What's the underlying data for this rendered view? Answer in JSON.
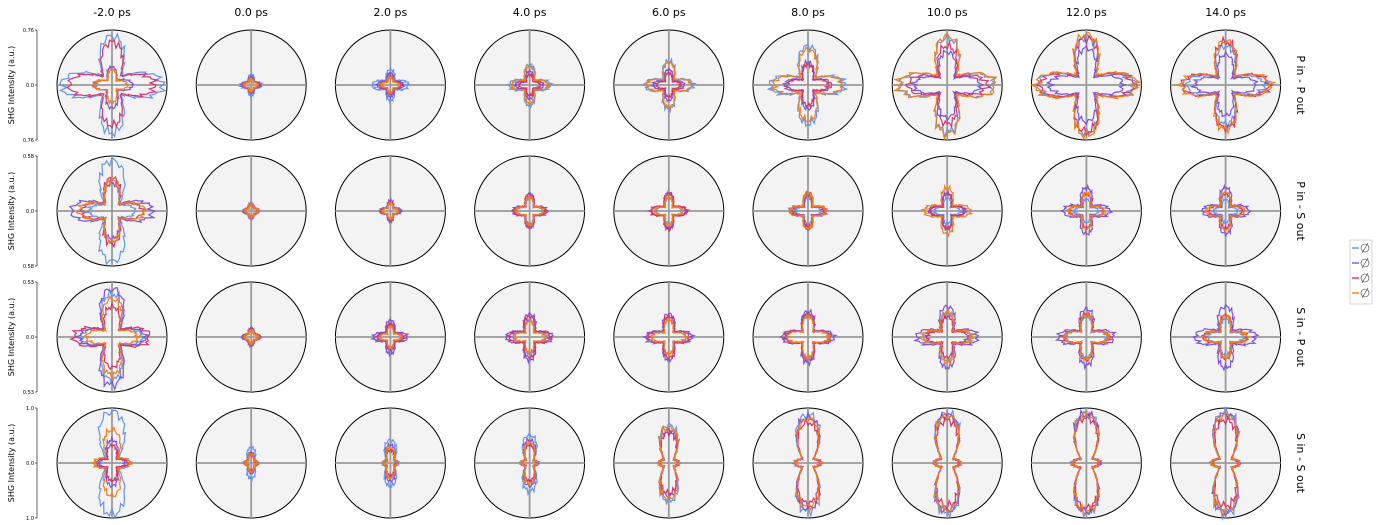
{
  "chart_data": {
    "type": "polar-grid",
    "columns": [
      "-2.0 ps",
      "0.0 ps",
      "2.0 ps",
      "4.0 ps",
      "6.0 ps",
      "8.0 ps",
      "10.0 ps",
      "12.0 ps",
      "14.0 ps"
    ],
    "rows": [
      {
        "label": "P in - P out",
        "ylabel": "SHG Intensity (a.u.)",
        "ticks": [
          "0.76",
          "0.0",
          "0.76"
        ],
        "rmax": 0.76
      },
      {
        "label": "P in - S out",
        "ylabel": "SHG Intensity (a.u.)",
        "ticks": [
          "0.58",
          "0.0",
          "0.58"
        ],
        "rmax": 0.58
      },
      {
        "label": "S in - P out",
        "ylabel": "SHG Intensity (a.u.)",
        "ticks": [
          "0.53",
          "0.0",
          "0.53"
        ],
        "rmax": 0.53
      },
      {
        "label": "S in - S out",
        "ylabel": "SHG Intensity (a.u.)",
        "ticks": [
          "1.0",
          "0.0",
          "1.0"
        ],
        "rmax": 1.0
      }
    ],
    "series_colors": [
      "#6495ed",
      "#7b52e0",
      "#d6336c",
      "#f07f18"
    ],
    "legend_position": "right",
    "legend_icons": [
      "polarizer-icon-1",
      "polarizer-icon-2",
      "polarizer-icon-3",
      "polarizer-icon-4"
    ],
    "panels": [
      [
        [
          [
            0.92,
            0.95,
            0.9,
            0.95
          ],
          [
            0.3,
            0.35,
            0.4,
            0.3
          ],
          [
            0.8,
            0.8,
            0.75,
            0.8
          ],
          [
            0.25,
            0.25,
            0.3,
            0.3
          ]
        ],
        [
          [
            0.15,
            0.15,
            0.15,
            0.15
          ],
          [
            0.1,
            0.12,
            0.1,
            0.12
          ],
          [
            0.08,
            0.1,
            0.08,
            0.1
          ],
          [
            0.07,
            0.08,
            0.07,
            0.08
          ]
        ],
        [
          [
            0.25,
            0.3,
            0.25,
            0.3
          ],
          [
            0.18,
            0.2,
            0.18,
            0.2
          ],
          [
            0.12,
            0.15,
            0.12,
            0.15
          ],
          [
            0.1,
            0.12,
            0.1,
            0.12
          ]
        ],
        [
          [
            0.35,
            0.35,
            0.35,
            0.35
          ],
          [
            0.22,
            0.22,
            0.22,
            0.22
          ],
          [
            0.15,
            0.15,
            0.15,
            0.15
          ],
          [
            0.3,
            0.3,
            0.3,
            0.3
          ]
        ],
        [
          [
            0.42,
            0.42,
            0.42,
            0.42
          ],
          [
            0.25,
            0.25,
            0.25,
            0.25
          ],
          [
            0.18,
            0.18,
            0.18,
            0.18
          ],
          [
            0.38,
            0.38,
            0.38,
            0.38
          ]
        ],
        [
          [
            0.72,
            0.68,
            0.72,
            0.7
          ],
          [
            0.4,
            0.4,
            0.42,
            0.4
          ],
          [
            0.35,
            0.35,
            0.35,
            0.35
          ],
          [
            0.65,
            0.62,
            0.65,
            0.63
          ]
        ],
        [
          [
            0.88,
            0.88,
            0.88,
            0.88
          ],
          [
            0.6,
            0.6,
            0.6,
            0.6
          ],
          [
            0.72,
            0.72,
            0.72,
            0.72
          ],
          [
            0.92,
            0.92,
            0.92,
            0.92
          ]
        ],
        [
          [
            0.9,
            0.9,
            0.9,
            0.9
          ],
          [
            0.68,
            0.68,
            0.68,
            0.68
          ],
          [
            0.88,
            0.88,
            0.88,
            0.88
          ],
          [
            0.95,
            0.95,
            0.95,
            0.95
          ]
        ],
        [
          [
            0.72,
            0.72,
            0.72,
            0.72
          ],
          [
            0.55,
            0.55,
            0.55,
            0.55
          ],
          [
            0.8,
            0.8,
            0.8,
            0.8
          ],
          [
            0.82,
            0.82,
            0.82,
            0.82
          ]
        ]
      ],
      [
        [
          [
            0.95,
            0.4,
            0.95,
            0.4
          ],
          [
            0.5,
            0.75,
            0.5,
            0.75
          ],
          [
            0.6,
            0.55,
            0.6,
            0.55
          ],
          [
            0.55,
            0.6,
            0.55,
            0.6
          ]
        ],
        [
          [
            0.1,
            0.1,
            0.1,
            0.1
          ],
          [
            0.08,
            0.08,
            0.08,
            0.08
          ],
          [
            0.08,
            0.08,
            0.08,
            0.08
          ],
          [
            0.07,
            0.07,
            0.07,
            0.07
          ]
        ],
        [
          [
            0.12,
            0.12,
            0.12,
            0.12
          ],
          [
            0.15,
            0.15,
            0.15,
            0.15
          ],
          [
            0.12,
            0.12,
            0.12,
            0.12
          ],
          [
            0.1,
            0.1,
            0.1,
            0.1
          ]
        ],
        [
          [
            0.2,
            0.2,
            0.2,
            0.2
          ],
          [
            0.28,
            0.28,
            0.28,
            0.28
          ],
          [
            0.25,
            0.25,
            0.25,
            0.25
          ],
          [
            0.22,
            0.22,
            0.22,
            0.22
          ]
        ],
        [
          [
            0.2,
            0.2,
            0.2,
            0.2
          ],
          [
            0.28,
            0.28,
            0.28,
            0.28
          ],
          [
            0.3,
            0.3,
            0.3,
            0.3
          ],
          [
            0.22,
            0.22,
            0.22,
            0.22
          ]
        ],
        [
          [
            0.2,
            0.2,
            0.2,
            0.2
          ],
          [
            0.3,
            0.3,
            0.3,
            0.3
          ],
          [
            0.25,
            0.25,
            0.25,
            0.25
          ],
          [
            0.3,
            0.3,
            0.3,
            0.3
          ]
        ],
        [
          [
            0.2,
            0.2,
            0.2,
            0.2
          ],
          [
            0.3,
            0.3,
            0.3,
            0.3
          ],
          [
            0.28,
            0.28,
            0.28,
            0.28
          ],
          [
            0.4,
            0.4,
            0.4,
            0.4
          ]
        ],
        [
          [
            0.18,
            0.18,
            0.18,
            0.18
          ],
          [
            0.4,
            0.4,
            0.4,
            0.4
          ],
          [
            0.28,
            0.28,
            0.28,
            0.28
          ],
          [
            0.3,
            0.3,
            0.3,
            0.3
          ]
        ],
        [
          [
            0.18,
            0.18,
            0.18,
            0.18
          ],
          [
            0.4,
            0.4,
            0.4,
            0.4
          ],
          [
            0.28,
            0.28,
            0.28,
            0.28
          ],
          [
            0.32,
            0.32,
            0.32,
            0.32
          ]
        ]
      ],
      [
        [
          [
            0.8,
            0.55,
            0.8,
            0.55
          ],
          [
            0.9,
            0.6,
            0.9,
            0.6
          ],
          [
            0.55,
            0.7,
            0.55,
            0.7
          ],
          [
            0.7,
            0.45,
            0.7,
            0.45
          ]
        ],
        [
          [
            0.1,
            0.1,
            0.1,
            0.1
          ],
          [
            0.12,
            0.12,
            0.12,
            0.12
          ],
          [
            0.1,
            0.1,
            0.1,
            0.1
          ],
          [
            0.08,
            0.08,
            0.08,
            0.08
          ]
        ],
        [
          [
            0.2,
            0.2,
            0.2,
            0.2
          ],
          [
            0.28,
            0.28,
            0.28,
            0.28
          ],
          [
            0.2,
            0.2,
            0.2,
            0.2
          ],
          [
            0.15,
            0.15,
            0.15,
            0.15
          ]
        ],
        [
          [
            0.28,
            0.28,
            0.28,
            0.28
          ],
          [
            0.4,
            0.4,
            0.4,
            0.4
          ],
          [
            0.35,
            0.35,
            0.35,
            0.35
          ],
          [
            0.25,
            0.25,
            0.25,
            0.25
          ]
        ],
        [
          [
            0.28,
            0.28,
            0.28,
            0.28
          ],
          [
            0.4,
            0.4,
            0.4,
            0.4
          ],
          [
            0.35,
            0.35,
            0.35,
            0.35
          ],
          [
            0.28,
            0.28,
            0.28,
            0.28
          ]
        ],
        [
          [
            0.38,
            0.38,
            0.38,
            0.38
          ],
          [
            0.45,
            0.45,
            0.45,
            0.45
          ],
          [
            0.4,
            0.4,
            0.4,
            0.4
          ],
          [
            0.35,
            0.35,
            0.35,
            0.35
          ]
        ],
        [
          [
            0.4,
            0.4,
            0.4,
            0.4
          ],
          [
            0.55,
            0.55,
            0.55,
            0.55
          ],
          [
            0.35,
            0.35,
            0.35,
            0.35
          ],
          [
            0.45,
            0.45,
            0.45,
            0.45
          ]
        ],
        [
          [
            0.35,
            0.35,
            0.35,
            0.35
          ],
          [
            0.5,
            0.5,
            0.5,
            0.5
          ],
          [
            0.4,
            0.4,
            0.4,
            0.4
          ],
          [
            0.38,
            0.38,
            0.38,
            0.38
          ]
        ],
        [
          [
            0.3,
            0.3,
            0.3,
            0.3
          ],
          [
            0.55,
            0.55,
            0.55,
            0.55
          ],
          [
            0.38,
            0.38,
            0.38,
            0.38
          ],
          [
            0.36,
            0.36,
            0.36,
            0.36
          ]
        ]
      ],
      [
        [
          [
            0.97,
            0.3,
            0.97,
            0.3
          ],
          [
            0.4,
            0.2,
            0.4,
            0.2
          ],
          [
            0.3,
            0.25,
            0.3,
            0.25
          ],
          [
            0.6,
            0.3,
            0.6,
            0.3
          ]
        ],
        [
          [
            0.25,
            0.08,
            0.25,
            0.08
          ],
          [
            0.15,
            0.07,
            0.15,
            0.07
          ],
          [
            0.1,
            0.06,
            0.1,
            0.06
          ],
          [
            0.12,
            0.06,
            0.12,
            0.06
          ]
        ],
        [
          [
            0.4,
            0.1,
            0.4,
            0.1
          ],
          [
            0.3,
            0.08,
            0.3,
            0.08
          ],
          [
            0.2,
            0.07,
            0.2,
            0.07
          ],
          [
            0.25,
            0.08,
            0.25,
            0.08
          ]
        ],
        [
          [
            0.5,
            0.12,
            0.5,
            0.12
          ],
          [
            0.4,
            0.1,
            0.4,
            0.1
          ],
          [
            0.3,
            0.09,
            0.3,
            0.09
          ],
          [
            0.35,
            0.1,
            0.35,
            0.1
          ]
        ],
        [
          [
            0.7,
            0.15,
            0.7,
            0.15
          ],
          [
            0.6,
            0.14,
            0.6,
            0.14
          ],
          [
            0.55,
            0.13,
            0.55,
            0.13
          ],
          [
            0.65,
            0.14,
            0.65,
            0.14
          ]
        ],
        [
          [
            0.9,
            0.2,
            0.9,
            0.2
          ],
          [
            0.85,
            0.2,
            0.85,
            0.2
          ],
          [
            0.75,
            0.18,
            0.75,
            0.18
          ],
          [
            0.82,
            0.19,
            0.82,
            0.19
          ]
        ],
        [
          [
            0.93,
            0.2,
            0.93,
            0.2
          ],
          [
            0.9,
            0.2,
            0.9,
            0.2
          ],
          [
            0.8,
            0.19,
            0.8,
            0.19
          ],
          [
            0.88,
            0.2,
            0.88,
            0.2
          ]
        ],
        [
          [
            0.93,
            0.22,
            0.93,
            0.22
          ],
          [
            0.92,
            0.22,
            0.92,
            0.22
          ],
          [
            0.85,
            0.2,
            0.85,
            0.2
          ],
          [
            0.9,
            0.21,
            0.9,
            0.21
          ]
        ],
        [
          [
            0.95,
            0.22,
            0.95,
            0.22
          ],
          [
            0.92,
            0.21,
            0.92,
            0.21
          ],
          [
            0.8,
            0.2,
            0.8,
            0.2
          ],
          [
            0.9,
            0.22,
            0.9,
            0.22
          ]
        ]
      ]
    ]
  }
}
